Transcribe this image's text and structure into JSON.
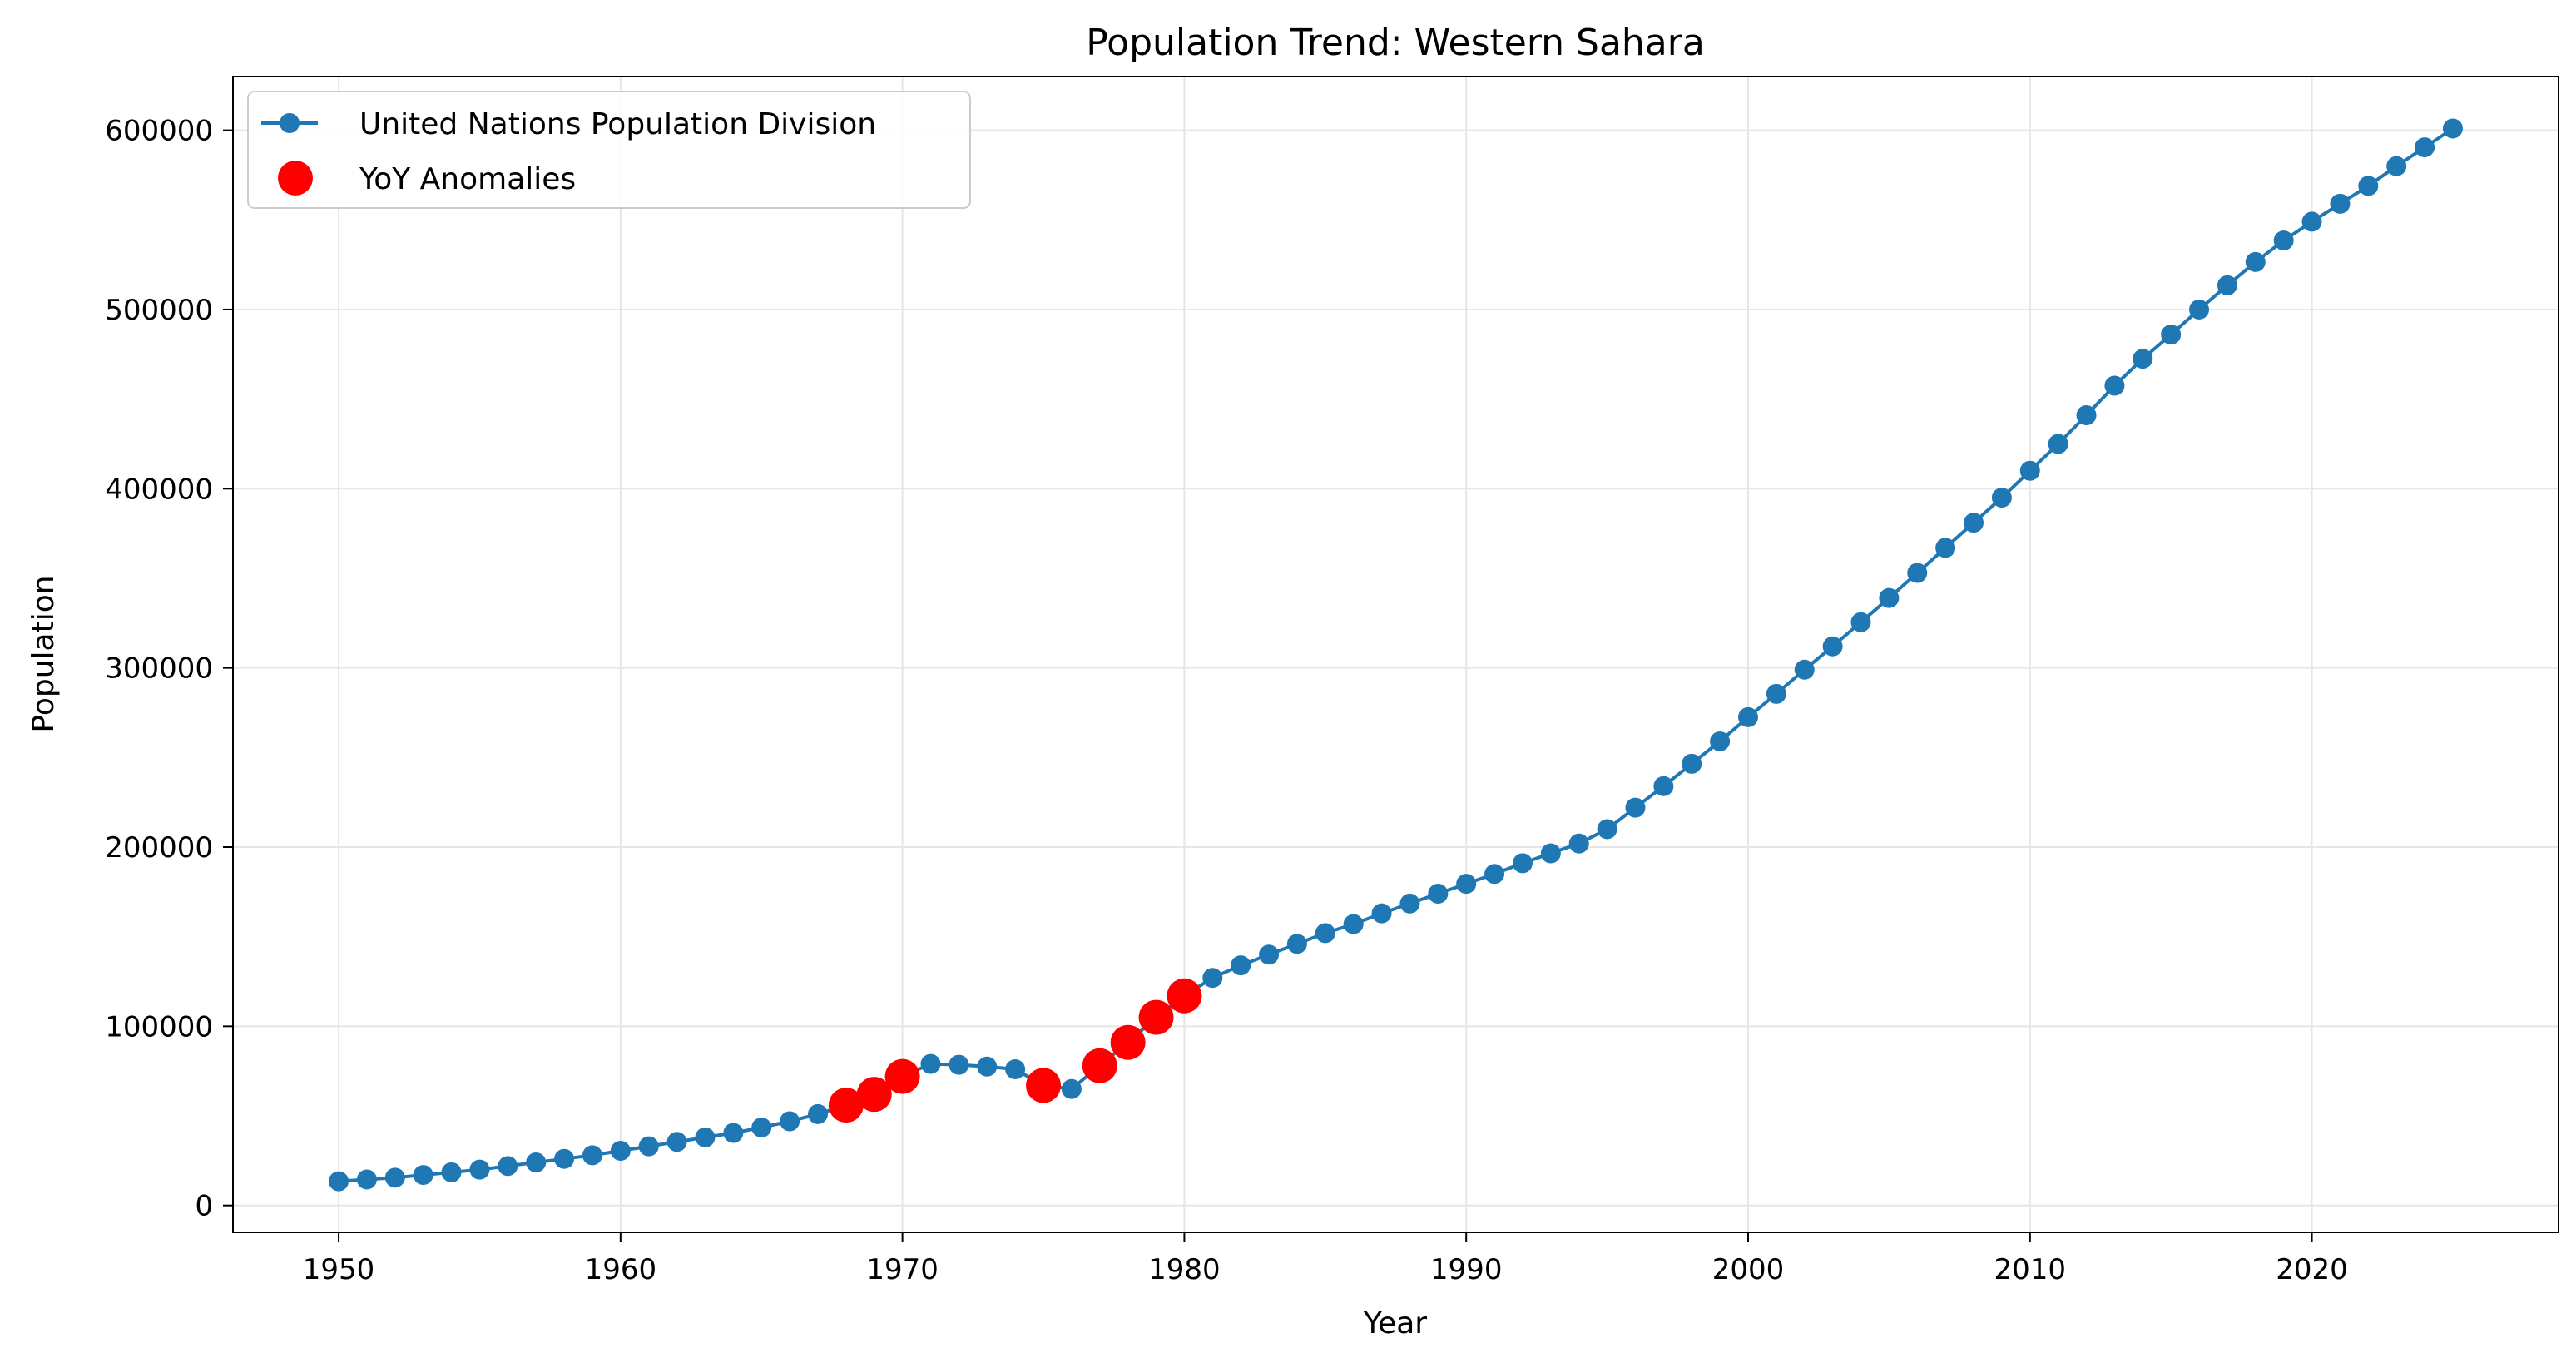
{
  "chart_data": {
    "type": "line",
    "title": "Population Trend: Western Sahara",
    "xlabel": "Year",
    "ylabel": "Population",
    "xlim": [
      1946.25,
      2028.75
    ],
    "ylim": [
      -15000,
      630000
    ],
    "xticks": [
      1950,
      1960,
      1970,
      1980,
      1990,
      2000,
      2010,
      2020
    ],
    "yticks": [
      0,
      100000,
      200000,
      300000,
      400000,
      500000,
      600000
    ],
    "xtick_labels": [
      "1950",
      "1960",
      "1970",
      "1980",
      "1990",
      "2000",
      "2010",
      "2020"
    ],
    "ytick_labels": [
      "0",
      "100000",
      "200000",
      "300000",
      "400000",
      "500000",
      "600000"
    ],
    "grid": true,
    "legend_position": "top-left",
    "series": [
      {
        "name": "United Nations Population Division",
        "color": "#1f77b4",
        "style": "line-with-markers",
        "x": [
          1950,
          1951,
          1952,
          1953,
          1954,
          1955,
          1956,
          1957,
          1958,
          1959,
          1960,
          1961,
          1962,
          1963,
          1964,
          1965,
          1966,
          1967,
          1968,
          1969,
          1970,
          1971,
          1972,
          1973,
          1974,
          1975,
          1976,
          1977,
          1978,
          1979,
          1980,
          1981,
          1982,
          1983,
          1984,
          1985,
          1986,
          1987,
          1988,
          1989,
          1990,
          1991,
          1992,
          1993,
          1994,
          1995,
          1996,
          1997,
          1998,
          1999,
          2000,
          2001,
          2002,
          2003,
          2004,
          2005,
          2006,
          2007,
          2008,
          2009,
          2010,
          2011,
          2012,
          2013,
          2014,
          2015,
          2016,
          2017,
          2018,
          2019,
          2020,
          2021,
          2022,
          2023,
          2024,
          2025
        ],
        "y": [
          13500,
          14500,
          15500,
          17000,
          18500,
          20000,
          22000,
          24000,
          26000,
          28000,
          30500,
          33000,
          35500,
          38000,
          40500,
          43500,
          47000,
          51000,
          56000,
          62000,
          72000,
          79000,
          78500,
          77500,
          76000,
          67000,
          65000,
          78000,
          91000,
          105000,
          117000,
          127000,
          134000,
          140000,
          146000,
          152000,
          157000,
          163000,
          168500,
          174000,
          179500,
          185000,
          191000,
          196500,
          202000,
          210000,
          222000,
          234000,
          246500,
          259000,
          272500,
          285500,
          299000,
          312000,
          325500,
          339000,
          353000,
          367000,
          381000,
          395000,
          410000,
          425000,
          441000,
          457500,
          472500,
          486000,
          500000,
          513500,
          526500,
          538500,
          549000,
          559000,
          569000,
          580000,
          590500,
          601000
        ]
      },
      {
        "name": "YoY Anomalies",
        "color": "#ff0000",
        "style": "markers",
        "x": [
          1968,
          1969,
          1970,
          1975,
          1977,
          1978,
          1979,
          1980
        ],
        "y": [
          56000,
          62000,
          72000,
          67000,
          78000,
          91000,
          105000,
          117000
        ]
      }
    ]
  }
}
